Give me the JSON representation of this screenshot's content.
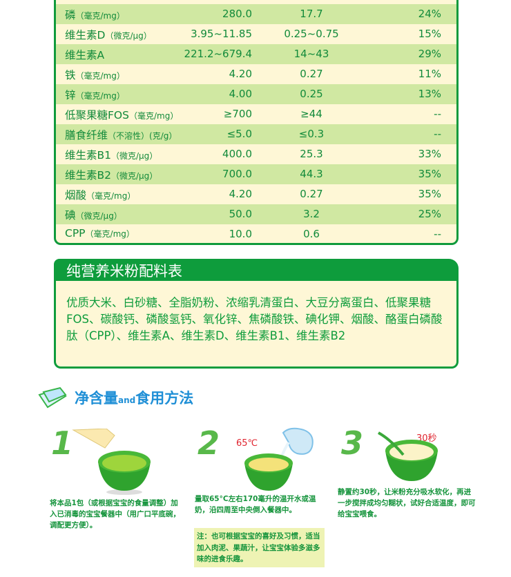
{
  "nutrition_table": {
    "rows": [
      {
        "name": "磷",
        "unit": "（毫克/mg）",
        "per100g": "280.0",
        "per_serving": "17.7",
        "nrv": "24%",
        "alt": true
      },
      {
        "name": "维生素D",
        "unit": "（微克/μg）",
        "per100g": "3.95~11.85",
        "per_serving": "0.25~0.75",
        "nrv": "15%",
        "alt": false
      },
      {
        "name": "维生素A",
        "unit": "",
        "per100g": "221.2~679.4",
        "per_serving": "14~43",
        "nrv": "29%",
        "alt": true
      },
      {
        "name": "铁",
        "unit": "（毫克/mg）",
        "per100g": "4.20",
        "per_serving": "0.27",
        "nrv": "11%",
        "alt": false
      },
      {
        "name": "锌",
        "unit": "（毫克/mg）",
        "per100g": "4.00",
        "per_serving": "0.25",
        "nrv": "13%",
        "alt": true
      },
      {
        "name": "低聚果糖FOS",
        "unit": "（毫克/mg）",
        "per100g": "≥700",
        "per_serving": "≥44",
        "nrv": "--",
        "alt": false
      },
      {
        "name": "膳食纤维",
        "unit": "（不溶性）(克/g）",
        "per100g": "≤5.0",
        "per_serving": "≤0.3",
        "nrv": "--",
        "alt": true
      },
      {
        "name": "维生素B1",
        "unit": "（微克/μg）",
        "per100g": "400.0",
        "per_serving": "25.3",
        "nrv": "33%",
        "alt": false
      },
      {
        "name": "维生素B2",
        "unit": "（微克/μg）",
        "per100g": "700.0",
        "per_serving": "44.3",
        "nrv": "35%",
        "alt": true
      },
      {
        "name": "烟酸",
        "unit": "（毫克/mg）",
        "per100g": "4.20",
        "per_serving": "0.27",
        "nrv": "35%",
        "alt": false
      },
      {
        "name": "碘",
        "unit": "（微克/μg）",
        "per100g": "50.0",
        "per_serving": "3.2",
        "nrv": "25%",
        "alt": true
      },
      {
        "name": "CPP",
        "unit": "（毫克/mg）",
        "per100g": "10.0",
        "per_serving": "0.6",
        "nrv": "--",
        "alt": false
      }
    ]
  },
  "ingredients": {
    "title": "纯营养米粉配料表",
    "text": "优质大米、白砂糖、全脂奶粉、浓缩乳清蛋白、大豆分离蛋白、低聚果糖FOS、碳酸钙、磷酸氢钙、氧化锌、焦磷酸铁、碘化钾、烟酸、酪蛋白磷酸肽（CPP）、维生素A、维生素D、维生素B1、维生素B2"
  },
  "usage": {
    "title_part1": "净含量",
    "title_and": "and",
    "title_part2": "食用方法",
    "steps": [
      {
        "number": "1",
        "desc": "将本品1包（或根据宝宝的食量调整）加入已消毒的宝宝餐器中（用广口平底碗，调配更方便）。"
      },
      {
        "number": "2",
        "temp_label": "65℃",
        "desc": "量取65°C左右170毫升的温开水或温奶，沿四周至中央倒入餐器中。"
      },
      {
        "number": "3",
        "time_label": "30秒",
        "desc": "静置约30秒，让米粉充分吸水软化，再进一步搅拌成均匀糊状，试好合适温度，即可给宝宝喂食。"
      }
    ],
    "note": "注：也可根据宝宝的喜好及习惯，适当加入肉泥、果蔬汁，让宝宝体验多滋多味的进食乐趣。"
  },
  "colors": {
    "brand_green": "#0e9c3c",
    "row_alt": "#d0e8a2",
    "cream": "#fef7d6",
    "title_blue": "#1f8fd6",
    "accent_red": "#e0242f"
  }
}
